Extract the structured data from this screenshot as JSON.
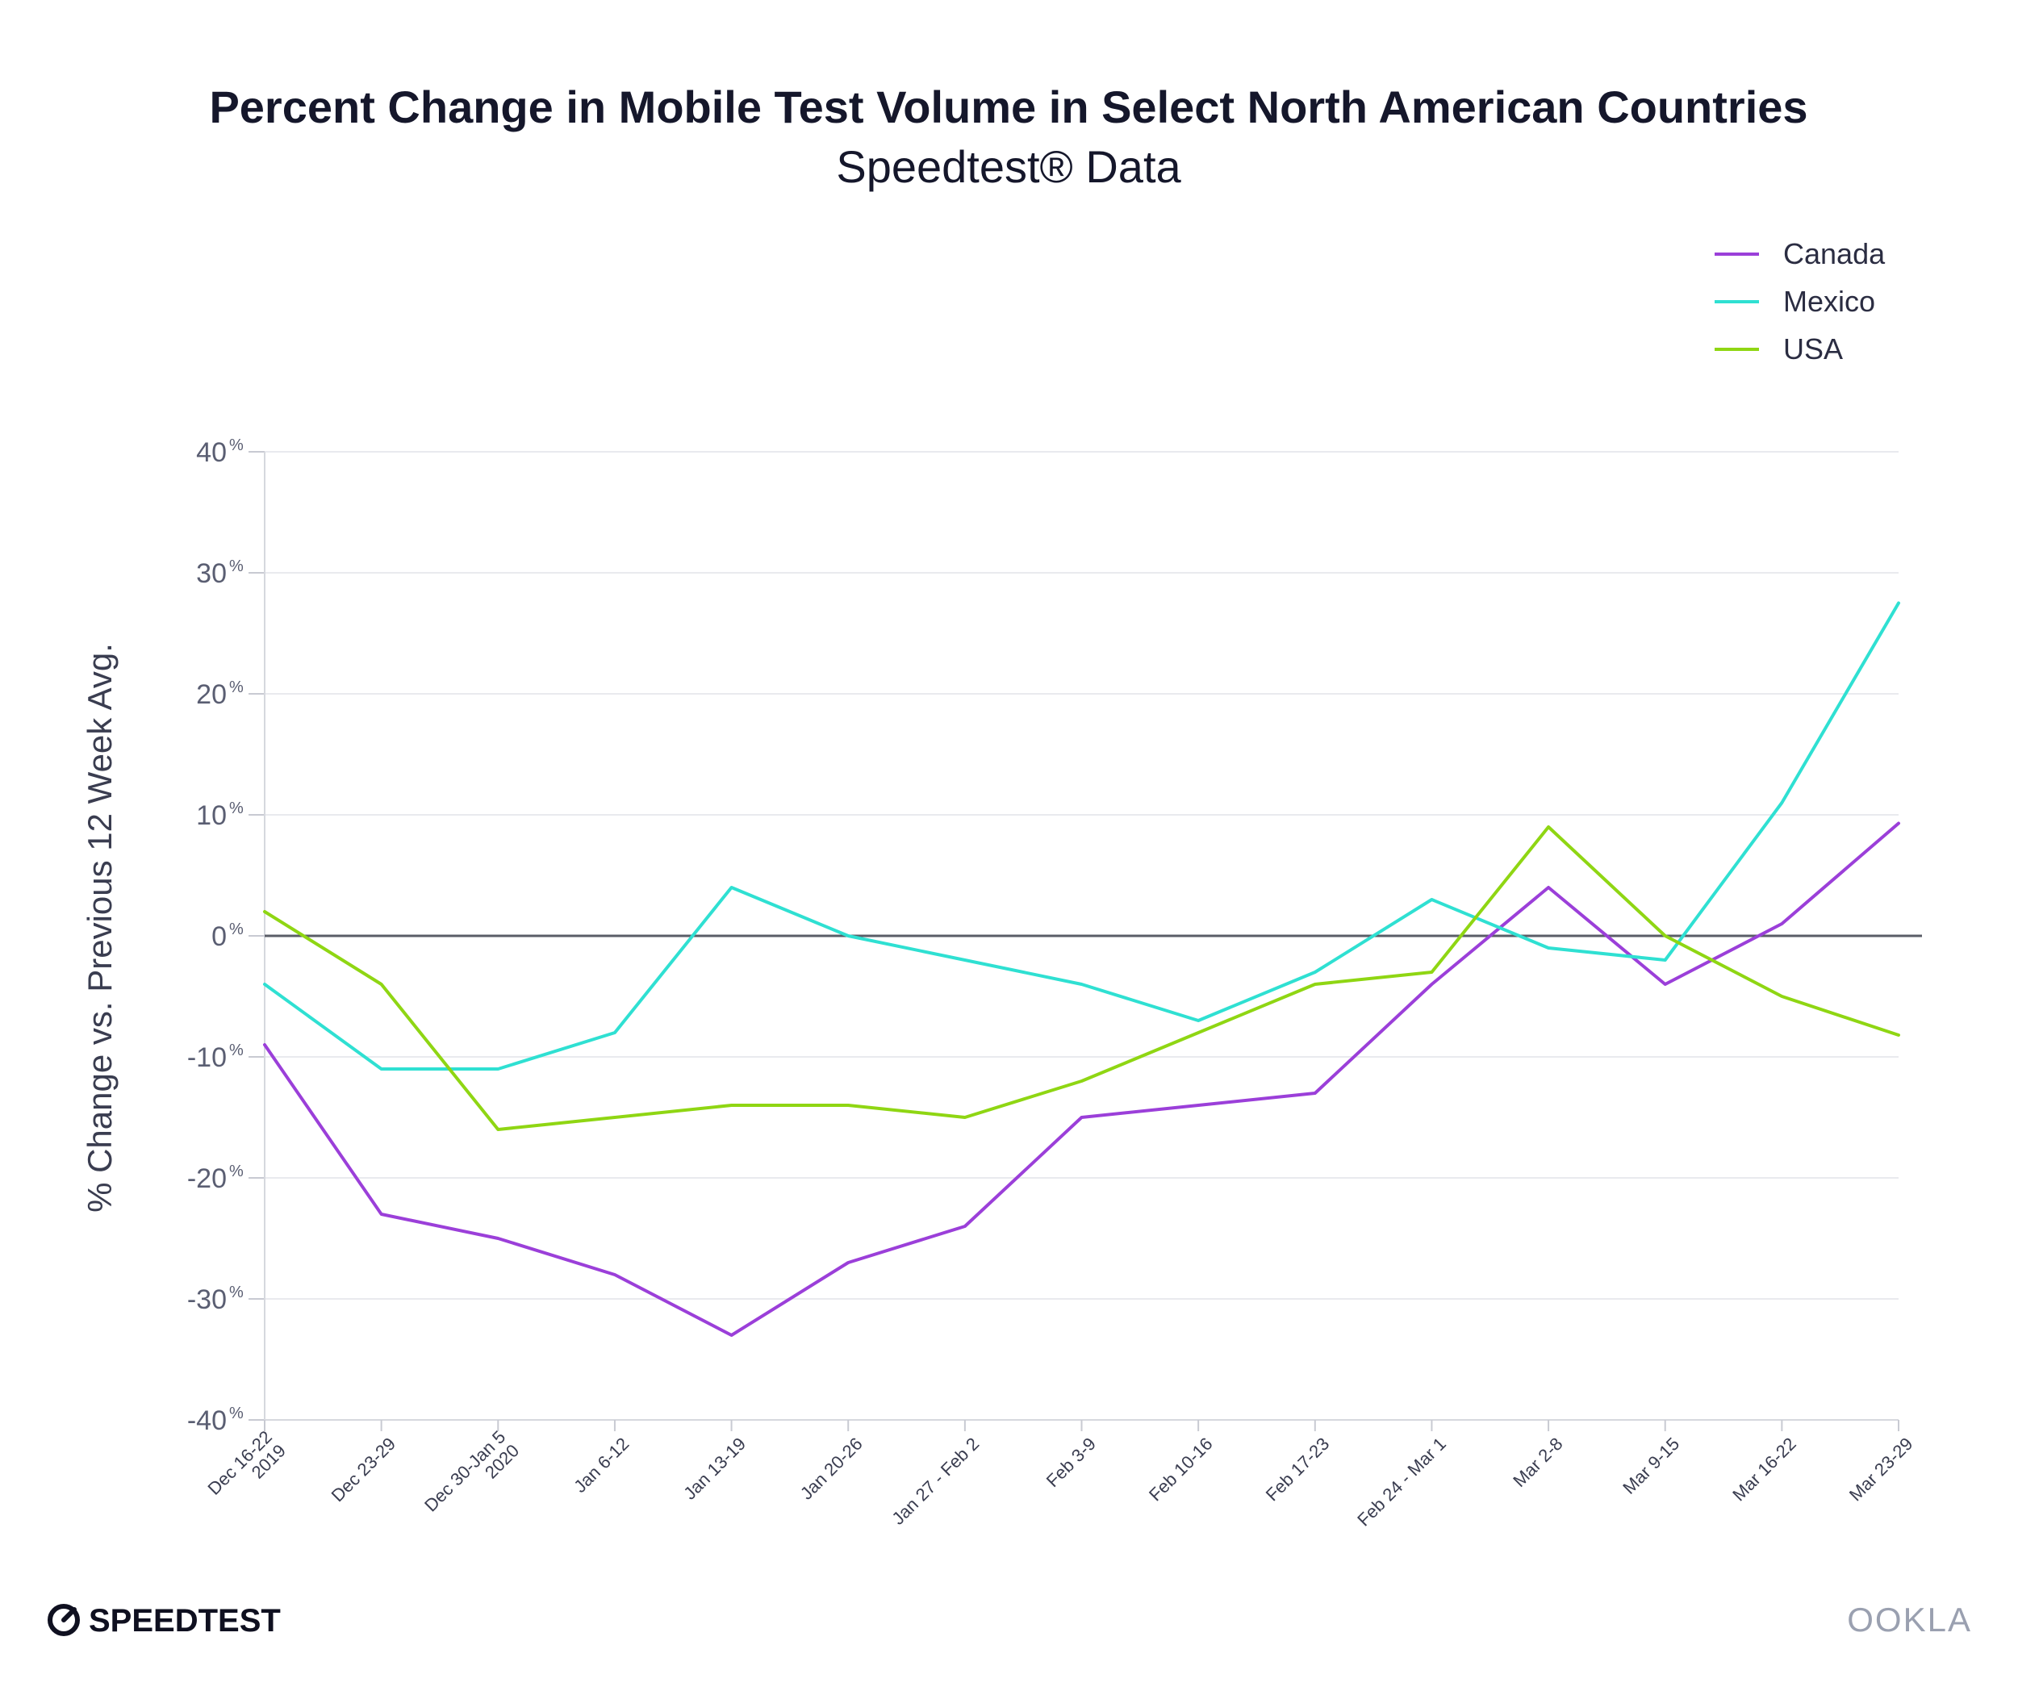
{
  "chart_data": {
    "type": "line",
    "title": "Percent Change in Mobile Test Volume in Select North American Countries",
    "subtitle": "Speedtest® Data",
    "ylabel": "% Change vs. Previous 12 Week Avg.",
    "ylim": [
      -40,
      40
    ],
    "yticks": [
      {
        "value": 40,
        "label": "40",
        "suffix": "%"
      },
      {
        "value": 30,
        "label": "30",
        "suffix": "%"
      },
      {
        "value": 20,
        "label": "20",
        "suffix": "%"
      },
      {
        "value": 10,
        "label": "10",
        "suffix": "%"
      },
      {
        "value": 0,
        "label": "0",
        "suffix": "%"
      },
      {
        "value": -10,
        "label": "-10",
        "suffix": "%"
      },
      {
        "value": -20,
        "label": "-20",
        "suffix": "%"
      },
      {
        "value": -30,
        "label": "-30",
        "suffix": "%"
      },
      {
        "value": -40,
        "label": "-40",
        "suffix": "%"
      }
    ],
    "categories": [
      "Dec 16-22 2019",
      "Dec 23-29",
      "Dec 30-Jan 5 2020",
      "Jan 6-12",
      "Jan 13-19",
      "Jan 20-26",
      "Jan 27 - Feb 2",
      "Feb 3-9",
      "Feb 10-16",
      "Feb 17-23",
      "Feb 24 - Mar 1",
      "Mar 2-8",
      "Mar 9-15",
      "Mar 16-22",
      "Mar 23-29"
    ],
    "category_lines": [
      [
        "Dec 16-22",
        "2019"
      ],
      [
        "Dec 23-29"
      ],
      [
        "Dec 30-Jan 5",
        "2020"
      ],
      [
        "Jan 6-12"
      ],
      [
        "Jan 13-19"
      ],
      [
        "Jan 20-26"
      ],
      [
        "Jan 27 - Feb 2"
      ],
      [
        "Feb 3-9"
      ],
      [
        "Feb 10-16"
      ],
      [
        "Feb 17-23"
      ],
      [
        "Feb 24 - Mar 1"
      ],
      [
        "Mar 2-8"
      ],
      [
        "Mar 9-15"
      ],
      [
        "Mar 16-22"
      ],
      [
        "Mar 23-29"
      ]
    ],
    "series": [
      {
        "name": "Canada",
        "color": "#9b3fd9",
        "values": [
          -9,
          -23,
          -25,
          -28,
          -33,
          -27,
          -24,
          -15,
          -14,
          -13,
          -4,
          4,
          -4,
          1,
          9.3
        ]
      },
      {
        "name": "Mexico",
        "color": "#2fe0d2",
        "values": [
          -4,
          -11,
          -11,
          -8,
          4,
          0,
          -2,
          -4,
          -7,
          -3,
          3,
          -1,
          -2,
          11,
          27.5
        ]
      },
      {
        "name": "USA",
        "color": "#8fd613",
        "values": [
          2,
          -4,
          -16,
          -15,
          -14,
          -14,
          -15,
          -12,
          -8,
          -4,
          -3,
          9,
          0,
          -5,
          -8.2
        ]
      }
    ],
    "grid": true,
    "legend": "top-right",
    "zero_line": true
  },
  "branding": {
    "left": "SPEEDTEST",
    "right": "OOKLA",
    "text_color": "#0f1020",
    "right_color": "#9aa0b0"
  }
}
